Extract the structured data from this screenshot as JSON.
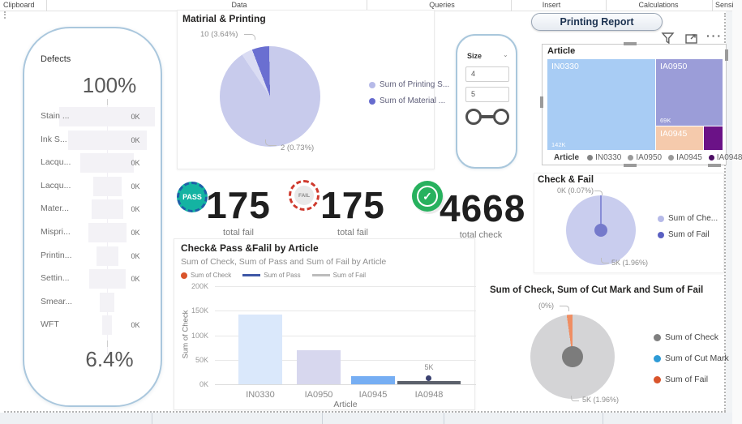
{
  "ribbon": {
    "items": [
      "Clipboard",
      "Data",
      "Queries",
      "Insert",
      "Calculations",
      "Sensi"
    ]
  },
  "report": {
    "title": "Printing Report"
  },
  "funnel": {
    "title": "Defects",
    "top_value": "100%",
    "bottom_value": "6.4%",
    "rows": [
      {
        "label": "Stain ...",
        "value": "0K",
        "rel": 100
      },
      {
        "label": "Ink S...",
        "value": "0K",
        "rel": 82
      },
      {
        "label": "Lacqu...",
        "value": "0K",
        "rel": 56
      },
      {
        "label": "Lacqu...",
        "value": "0K",
        "rel": 30
      },
      {
        "label": "Mater...",
        "value": "0K",
        "rel": 33
      },
      {
        "label": "Mispri...",
        "value": "0K",
        "rel": 40
      },
      {
        "label": "Printin...",
        "value": "0K",
        "rel": 23
      },
      {
        "label": "Settin...",
        "value": "0K",
        "rel": 38
      },
      {
        "label": "Smear...",
        "value": "",
        "rel": 15
      },
      {
        "label": "WFT",
        "value": "0K",
        "rel": 10
      }
    ]
  },
  "material_pie": {
    "title": "Matirial & Printing",
    "label_top": "10 (3.64%)",
    "label_bottom": "2 (0.73%)",
    "legend": [
      {
        "label": "Sum of Printing S...",
        "color": "#b6bae8"
      },
      {
        "label": "Sum of Material ...",
        "color": "#666bce"
      }
    ]
  },
  "size_slicer": {
    "title": "Size",
    "value_min": "4",
    "value_max": "5"
  },
  "treemap": {
    "title": "Article",
    "tiles": [
      {
        "label": "IN0330",
        "value": "142K",
        "color": "#a8ccf4"
      },
      {
        "label": "IA0950",
        "value": "69K",
        "color": "#9b9dd8"
      },
      {
        "label": "IA0945",
        "value": "",
        "color": "#f5caac"
      },
      {
        "label": "IA0948",
        "value": "",
        "color": "#6b1287"
      }
    ],
    "legend_title": "Article",
    "legend": [
      {
        "label": "IN0330",
        "color": "#848484"
      },
      {
        "label": "IA0950",
        "color": "#9a9a9a"
      },
      {
        "label": "IA0945",
        "color": "#9a9a9a"
      },
      {
        "label": "IA0948",
        "color": "#4c0e63"
      }
    ]
  },
  "check_fail": {
    "title": "Check & Fail",
    "label_top": "0K (0.07%)",
    "label_bottom": "5K (1.96%)",
    "legend": [
      {
        "label": "Sum of Che...",
        "color": "#b6bae8"
      },
      {
        "label": "Sum of Fail",
        "color": "#5a60c2"
      }
    ]
  },
  "kpis": [
    {
      "badge": "PASS",
      "value": "175",
      "label": "total fail"
    },
    {
      "badge": "FAIL",
      "value": "175",
      "label": "total fail"
    },
    {
      "badge": "CHECK",
      "glyph": "✓",
      "value": "4668",
      "label": "total check"
    }
  ],
  "bar_chart": {
    "title": "Check& Pass &Falil by Article",
    "subtitle": "Sum of Check, Sum of Pass and Sum of Fail by Article",
    "legend": [
      {
        "label": "Sum of Check",
        "type": "dot",
        "color": "#d9542b"
      },
      {
        "label": "Sum of Pass",
        "type": "line",
        "color": "#3e57a6"
      },
      {
        "label": "Sum of Fail",
        "type": "line",
        "color": "#bcbcbc"
      }
    ],
    "y_axis_title": "Sum of Check",
    "x_axis_title": "Article",
    "y_ticks": [
      "200K",
      "150K",
      "100K",
      "50K",
      "0K"
    ],
    "point_label": "5K",
    "chart_data": {
      "type": "bar",
      "categories": [
        "IN0330",
        "IA0950",
        "IA0945",
        "IA0948"
      ],
      "values": [
        142000,
        69000,
        16000,
        4500
      ],
      "bar_colors": [
        "#dae8fb",
        "#d7d7ee",
        "#76aef3",
        "#5c616c"
      ],
      "ylim": [
        0,
        200000
      ]
    }
  },
  "cutmark_pie": {
    "title": "Sum of Check, Sum of Cut Mark and Sum of Fail",
    "label_top": "(0%)",
    "label_bottom": "5K (1.96%)",
    "legend": [
      {
        "label": "Sum of Check",
        "color": "#7f7f7f"
      },
      {
        "label": "Sum of Cut Mark",
        "color": "#2e9bd6"
      },
      {
        "label": "Sum of Fail",
        "color": "#d9542b"
      }
    ]
  }
}
